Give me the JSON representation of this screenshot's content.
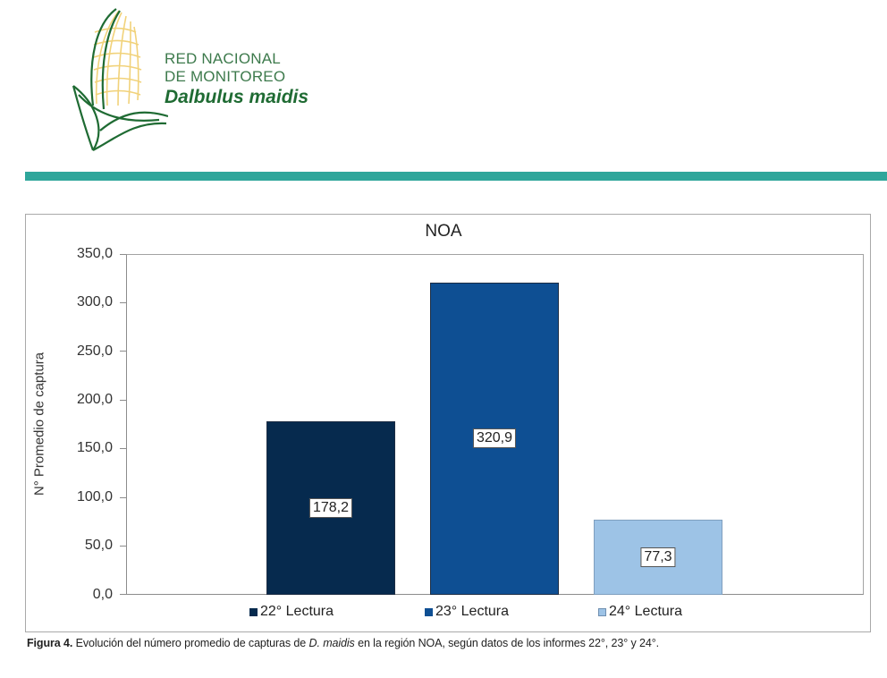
{
  "header": {
    "logo": {
      "line1": "RED NACIONAL",
      "line2": "DE MONITOREO",
      "line3": "Dalbulus maidis",
      "icon": "corn-leaf-logo-icon",
      "colors": {
        "green": "#1f6b33",
        "yellow": "#f1d27a"
      }
    },
    "divider_color": "#2fa69b"
  },
  "chart_data": {
    "type": "bar",
    "title": "NOA",
    "xlabel": "",
    "ylabel": "N° Promedio de captura",
    "ylim": [
      0,
      350
    ],
    "yticks": [
      "0,0",
      "50,0",
      "100,0",
      "150,0",
      "200,0",
      "250,0",
      "300,0",
      "350,0"
    ],
    "ytick_values": [
      0,
      50,
      100,
      150,
      200,
      250,
      300,
      350
    ],
    "grid": false,
    "legend_position": "bottom",
    "categories": [
      "22° Lectura",
      "23° Lectura",
      "24° Lectura"
    ],
    "series": [
      {
        "name": "22° Lectura",
        "values": [
          178.2
        ],
        "label": "178,2",
        "color": "#062a4e"
      },
      {
        "name": "23° Lectura",
        "values": [
          320.9
        ],
        "label": "320,9",
        "color": "#0e4f93"
      },
      {
        "name": "24° Lectura",
        "values": [
          77.3
        ],
        "label": "77,3",
        "color": "#9dc3e6"
      }
    ]
  },
  "caption": {
    "figure_label": "Figura 4.",
    "text_before_species": " Evolución del número promedio de capturas de ",
    "species": "D. maidis",
    "text_after_species": " en la región NOA, según datos de los informes 22°, 23° y 24°."
  }
}
